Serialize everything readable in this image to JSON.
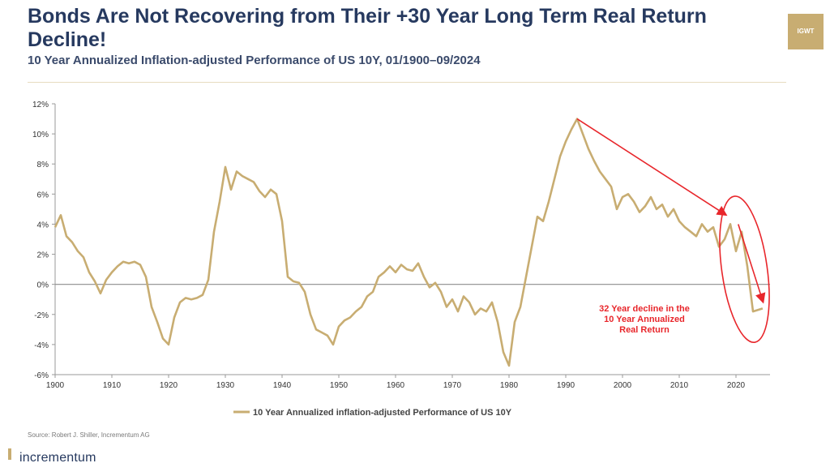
{
  "header": {
    "title": "Bonds Are Not Recovering from Their +30 Year Long Term Real Return Decline!",
    "subtitle": "10 Year Annualized Inflation-adjusted Performance of US 10Y, 01/1900–09/2024",
    "logo_text": "IGWT"
  },
  "footer": {
    "source": "Source: Robert J. Shiller, Incrementum AG",
    "brand": "incrementum"
  },
  "colors": {
    "series": "#c8ad72",
    "annotation": "#e8262b",
    "title": "#26395f",
    "zero_line": "#8c8c8c"
  },
  "chart_data": {
    "type": "line",
    "title": "Bonds Are Not Recovering from Their +30 Year Long Term Real Return Decline!",
    "subtitle": "10 Year Annualized Inflation-adjusted Performance of US 10Y, 01/1900–09/2024",
    "xlim": [
      1900,
      2026
    ],
    "ylim": [
      -6,
      12
    ],
    "x_ticks": [
      1900,
      1910,
      1920,
      1930,
      1940,
      1950,
      1960,
      1970,
      1980,
      1990,
      2000,
      2010,
      2020
    ],
    "y_ticks": [
      -6,
      -4,
      -2,
      0,
      2,
      4,
      6,
      8,
      10,
      12
    ],
    "y_tick_labels": [
      "-6%",
      "-4%",
      "-2%",
      "0%",
      "2%",
      "4%",
      "6%",
      "8%",
      "10%",
      "12%"
    ],
    "grid": false,
    "legend_position": "bottom-center",
    "series": [
      {
        "name": "10 Year Annualized inflation-adjusted Performance of US 10Y",
        "color": "#c8ad72",
        "x": [
          1900,
          1901,
          1902,
          1903,
          1904,
          1905,
          1906,
          1907,
          1908,
          1909,
          1910,
          1911,
          1912,
          1913,
          1914,
          1915,
          1916,
          1917,
          1918,
          1919,
          1920,
          1921,
          1922,
          1923,
          1924,
          1925,
          1926,
          1927,
          1928,
          1929,
          1930,
          1931,
          1932,
          1933,
          1934,
          1935,
          1936,
          1937,
          1938,
          1939,
          1940,
          1941,
          1942,
          1943,
          1944,
          1945,
          1946,
          1947,
          1948,
          1949,
          1950,
          1951,
          1952,
          1953,
          1954,
          1955,
          1956,
          1957,
          1958,
          1959,
          1960,
          1961,
          1962,
          1963,
          1964,
          1965,
          1966,
          1967,
          1968,
          1969,
          1970,
          1971,
          1972,
          1973,
          1974,
          1975,
          1976,
          1977,
          1978,
          1979,
          1980,
          1981,
          1982,
          1983,
          1984,
          1985,
          1986,
          1987,
          1988,
          1989,
          1990,
          1991,
          1992,
          1993,
          1994,
          1995,
          1996,
          1997,
          1998,
          1999,
          2000,
          2001,
          2002,
          2003,
          2004,
          2005,
          2006,
          2007,
          2008,
          2009,
          2010,
          2011,
          2012,
          2013,
          2014,
          2015,
          2016,
          2017,
          2018,
          2019,
          2020,
          2021,
          2022,
          2023,
          2024.7
        ],
        "y": [
          3.8,
          4.6,
          3.2,
          2.8,
          2.2,
          1.8,
          0.8,
          0.2,
          -0.6,
          0.3,
          0.8,
          1.2,
          1.5,
          1.4,
          1.5,
          1.3,
          0.5,
          -1.5,
          -2.5,
          -3.6,
          -4.0,
          -2.2,
          -1.2,
          -0.9,
          -1.0,
          -0.9,
          -0.7,
          0.3,
          3.5,
          5.5,
          7.8,
          6.3,
          7.5,
          7.2,
          7.0,
          6.8,
          6.2,
          5.8,
          6.3,
          6.0,
          4.2,
          0.5,
          0.2,
          0.1,
          -0.5,
          -2.0,
          -3.0,
          -3.2,
          -3.4,
          -4.0,
          -2.8,
          -2.4,
          -2.2,
          -1.8,
          -1.5,
          -0.8,
          -0.5,
          0.5,
          0.8,
          1.2,
          0.8,
          1.3,
          1.0,
          0.9,
          1.4,
          0.5,
          -0.2,
          0.1,
          -0.5,
          -1.5,
          -1.0,
          -1.8,
          -0.8,
          -1.2,
          -2.0,
          -1.6,
          -1.8,
          -1.2,
          -2.5,
          -4.5,
          -5.4,
          -2.5,
          -1.5,
          0.5,
          2.5,
          4.5,
          4.2,
          5.5,
          7.0,
          8.5,
          9.5,
          10.3,
          11.0,
          10.0,
          9.0,
          8.2,
          7.5,
          7.0,
          6.5,
          5.0,
          5.8,
          6.0,
          5.5,
          4.8,
          5.2,
          5.8,
          5.0,
          5.3,
          4.5,
          5.0,
          4.2,
          3.8,
          3.5,
          3.2,
          4.0,
          3.5,
          3.8,
          2.5,
          3.0,
          4.0,
          2.2,
          3.5,
          1.2,
          -1.8,
          -1.6
        ],
        "data": [
          {
            "x": 1900,
            "y": 3.8
          },
          {
            "x": 1901,
            "y": 4.6
          },
          {
            "x": 1902,
            "y": 3.2
          },
          {
            "x": 1903,
            "y": 2.8
          },
          {
            "x": 1904,
            "y": 2.2
          },
          {
            "x": 1905,
            "y": 1.8
          },
          {
            "x": 1906,
            "y": 0.8
          },
          {
            "x": 1907,
            "y": 0.2
          },
          {
            "x": 1908,
            "y": -0.6
          },
          {
            "x": 1909,
            "y": 0.3
          },
          {
            "x": 1910,
            "y": 0.8
          },
          {
            "x": 1911,
            "y": 1.2
          },
          {
            "x": 1912,
            "y": 1.5
          },
          {
            "x": 1913,
            "y": 1.4
          },
          {
            "x": 1914,
            "y": 1.5
          },
          {
            "x": 1915,
            "y": 1.3
          },
          {
            "x": 1916,
            "y": 0.5
          },
          {
            "x": 1917,
            "y": -1.5
          },
          {
            "x": 1918,
            "y": -2.5
          },
          {
            "x": 1919,
            "y": -3.6
          },
          {
            "x": 1920,
            "y": -4.0
          },
          {
            "x": 1921,
            "y": -2.2
          },
          {
            "x": 1922,
            "y": -1.2
          },
          {
            "x": 1923,
            "y": -0.9
          },
          {
            "x": 1924,
            "y": -1.0
          },
          {
            "x": 1925,
            "y": -0.9
          },
          {
            "x": 1926,
            "y": -0.7
          },
          {
            "x": 1927,
            "y": 0.3
          },
          {
            "x": 1928,
            "y": 3.5
          },
          {
            "x": 1929,
            "y": 5.5
          },
          {
            "x": 1930,
            "y": 7.8
          },
          {
            "x": 1931,
            "y": 6.3
          },
          {
            "x": 1932,
            "y": 7.5
          },
          {
            "x": 1933,
            "y": 7.2
          },
          {
            "x": 1934,
            "y": 7.0
          },
          {
            "x": 1935,
            "y": 6.8
          },
          {
            "x": 1936,
            "y": 6.2
          },
          {
            "x": 1937,
            "y": 5.8
          },
          {
            "x": 1938,
            "y": 6.3
          },
          {
            "x": 1939,
            "y": 6.0
          },
          {
            "x": 1940,
            "y": 4.2
          },
          {
            "x": 1941,
            "y": 0.5
          },
          {
            "x": 1942,
            "y": 0.2
          },
          {
            "x": 1943,
            "y": 0.1
          },
          {
            "x": 1944,
            "y": -0.5
          },
          {
            "x": 1945,
            "y": -2.0
          },
          {
            "x": 1946,
            "y": -3.0
          },
          {
            "x": 1947,
            "y": -3.2
          },
          {
            "x": 1948,
            "y": -3.4
          },
          {
            "x": 1949,
            "y": -4.0
          },
          {
            "x": 1950,
            "y": -2.8
          },
          {
            "x": 1951,
            "y": -2.4
          },
          {
            "x": 1952,
            "y": -2.2
          },
          {
            "x": 1953,
            "y": -1.8
          },
          {
            "x": 1954,
            "y": -1.5
          },
          {
            "x": 1955,
            "y": -0.8
          },
          {
            "x": 1956,
            "y": -0.5
          },
          {
            "x": 1957,
            "y": 0.5
          },
          {
            "x": 1958,
            "y": 0.8
          },
          {
            "x": 1959,
            "y": 1.2
          },
          {
            "x": 1960,
            "y": 0.8
          },
          {
            "x": 1961,
            "y": 1.3
          },
          {
            "x": 1962,
            "y": 1.0
          },
          {
            "x": 1963,
            "y": 0.9
          },
          {
            "x": 1964,
            "y": 1.4
          },
          {
            "x": 1965,
            "y": 0.5
          },
          {
            "x": 1966,
            "y": -0.2
          },
          {
            "x": 1967,
            "y": 0.1
          },
          {
            "x": 1968,
            "y": -0.5
          },
          {
            "x": 1969,
            "y": -1.5
          },
          {
            "x": 1970,
            "y": -1.0
          },
          {
            "x": 1971,
            "y": -1.8
          },
          {
            "x": 1972,
            "y": -0.8
          },
          {
            "x": 1973,
            "y": -1.2
          },
          {
            "x": 1974,
            "y": -2.0
          },
          {
            "x": 1975,
            "y": -1.6
          },
          {
            "x": 1976,
            "y": -1.8
          },
          {
            "x": 1977,
            "y": -1.2
          },
          {
            "x": 1978,
            "y": -2.5
          },
          {
            "x": 1979,
            "y": -4.5
          },
          {
            "x": 1980,
            "y": -5.4
          },
          {
            "x": 1981,
            "y": -2.5
          },
          {
            "x": 1982,
            "y": -1.5
          },
          {
            "x": 1983,
            "y": 0.5
          },
          {
            "x": 1984,
            "y": 2.5
          },
          {
            "x": 1985,
            "y": 4.5
          },
          {
            "x": 1986,
            "y": 4.2
          },
          {
            "x": 1987,
            "y": 5.5
          },
          {
            "x": 1988,
            "y": 7.0
          },
          {
            "x": 1989,
            "y": 8.5
          },
          {
            "x": 1990,
            "y": 9.5
          },
          {
            "x": 1991,
            "y": 10.3
          },
          {
            "x": 1992,
            "y": 11.0
          },
          {
            "x": 1993,
            "y": 10.0
          },
          {
            "x": 1994,
            "y": 9.0
          },
          {
            "x": 1995,
            "y": 8.2
          },
          {
            "x": 1996,
            "y": 7.5
          },
          {
            "x": 1997,
            "y": 7.0
          },
          {
            "x": 1998,
            "y": 6.5
          },
          {
            "x": 1999,
            "y": 5.0
          },
          {
            "x": 2000,
            "y": 5.8
          },
          {
            "x": 2001,
            "y": 6.0
          },
          {
            "x": 2002,
            "y": 5.5
          },
          {
            "x": 2003,
            "y": 4.8
          },
          {
            "x": 2004,
            "y": 5.2
          },
          {
            "x": 2005,
            "y": 5.8
          },
          {
            "x": 2006,
            "y": 5.0
          },
          {
            "x": 2007,
            "y": 5.3
          },
          {
            "x": 2008,
            "y": 4.5
          },
          {
            "x": 2009,
            "y": 5.0
          },
          {
            "x": 2010,
            "y": 4.2
          },
          {
            "x": 2011,
            "y": 3.8
          },
          {
            "x": 2012,
            "y": 3.5
          },
          {
            "x": 2013,
            "y": 3.2
          },
          {
            "x": 2014,
            "y": 4.0
          },
          {
            "x": 2015,
            "y": 3.5
          },
          {
            "x": 2016,
            "y": 3.8
          },
          {
            "x": 2017,
            "y": 2.5
          },
          {
            "x": 2018,
            "y": 3.0
          },
          {
            "x": 2019,
            "y": 4.0
          },
          {
            "x": 2020,
            "y": 2.2
          },
          {
            "x": 2021,
            "y": 3.5
          },
          {
            "x": 2022,
            "y": 1.2
          },
          {
            "x": 2023,
            "y": -1.8
          },
          {
            "x": 2024.7,
            "y": -1.6
          }
        ]
      }
    ],
    "annotations": [
      {
        "type": "text",
        "text": "32 Year decline in the\n10 Year Annualized\nReal Return",
        "color": "#e8262b"
      },
      {
        "type": "arrow",
        "from": [
          1992,
          11.0
        ],
        "to": [
          2018.3,
          4.6
        ],
        "color": "#e8262b"
      },
      {
        "type": "arrow",
        "from": [
          2020.4,
          4.0
        ],
        "to": [
          2024.8,
          -1.2
        ],
        "color": "#e8262b"
      },
      {
        "type": "ellipse",
        "center": [
          2021.5,
          1.0
        ],
        "radius_x_years": 4.0,
        "radius_y": 4.9,
        "color": "#e8262b"
      }
    ]
  }
}
